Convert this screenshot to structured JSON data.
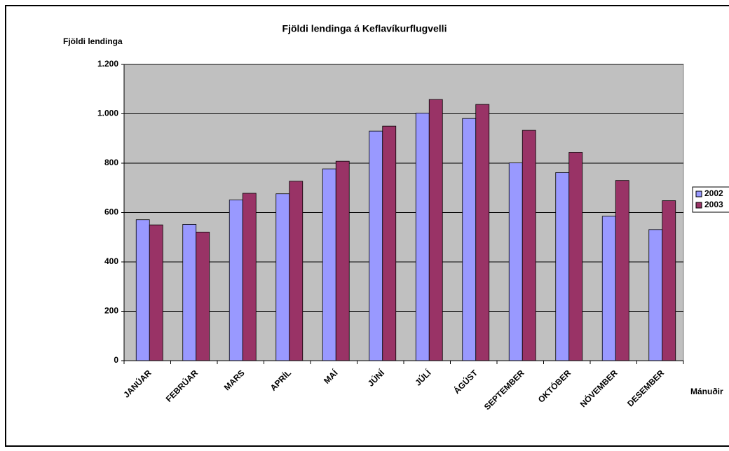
{
  "chart_data": {
    "type": "bar",
    "title": "Fjöldi lendinga á Keflavíkurflugvelli",
    "y_label": "Fjöldi lendinga",
    "x_label": "Mánuðir",
    "categories": [
      "JANÚAR",
      "FEBRÚAR",
      "MARS",
      "APRÍL",
      "MAÍ",
      "JÚNÍ",
      "JÚLÍ",
      "ÁGÚST",
      "SEPTEMBER",
      "OKTÓBER",
      "NÓVEMBER",
      "DESEMBER"
    ],
    "series": [
      {
        "name": "2002",
        "color": "#9999ff",
        "values": [
          571,
          552,
          651,
          676,
          777,
          930,
          1003,
          981,
          801,
          762,
          585,
          531
        ]
      },
      {
        "name": "2003",
        "color": "#993366",
        "values": [
          550,
          521,
          678,
          727,
          808,
          950,
          1058,
          1038,
          933,
          844,
          730,
          648
        ]
      }
    ],
    "ylim": [
      0,
      1200
    ],
    "yticks": [
      0,
      200,
      400,
      600,
      800,
      {
        "value": 1000,
        "label": "1.000"
      },
      {
        "value": 1200,
        "label": "1.200"
      }
    ],
    "grid": true,
    "legend": "right",
    "plot_background": "#c0c0c0"
  }
}
